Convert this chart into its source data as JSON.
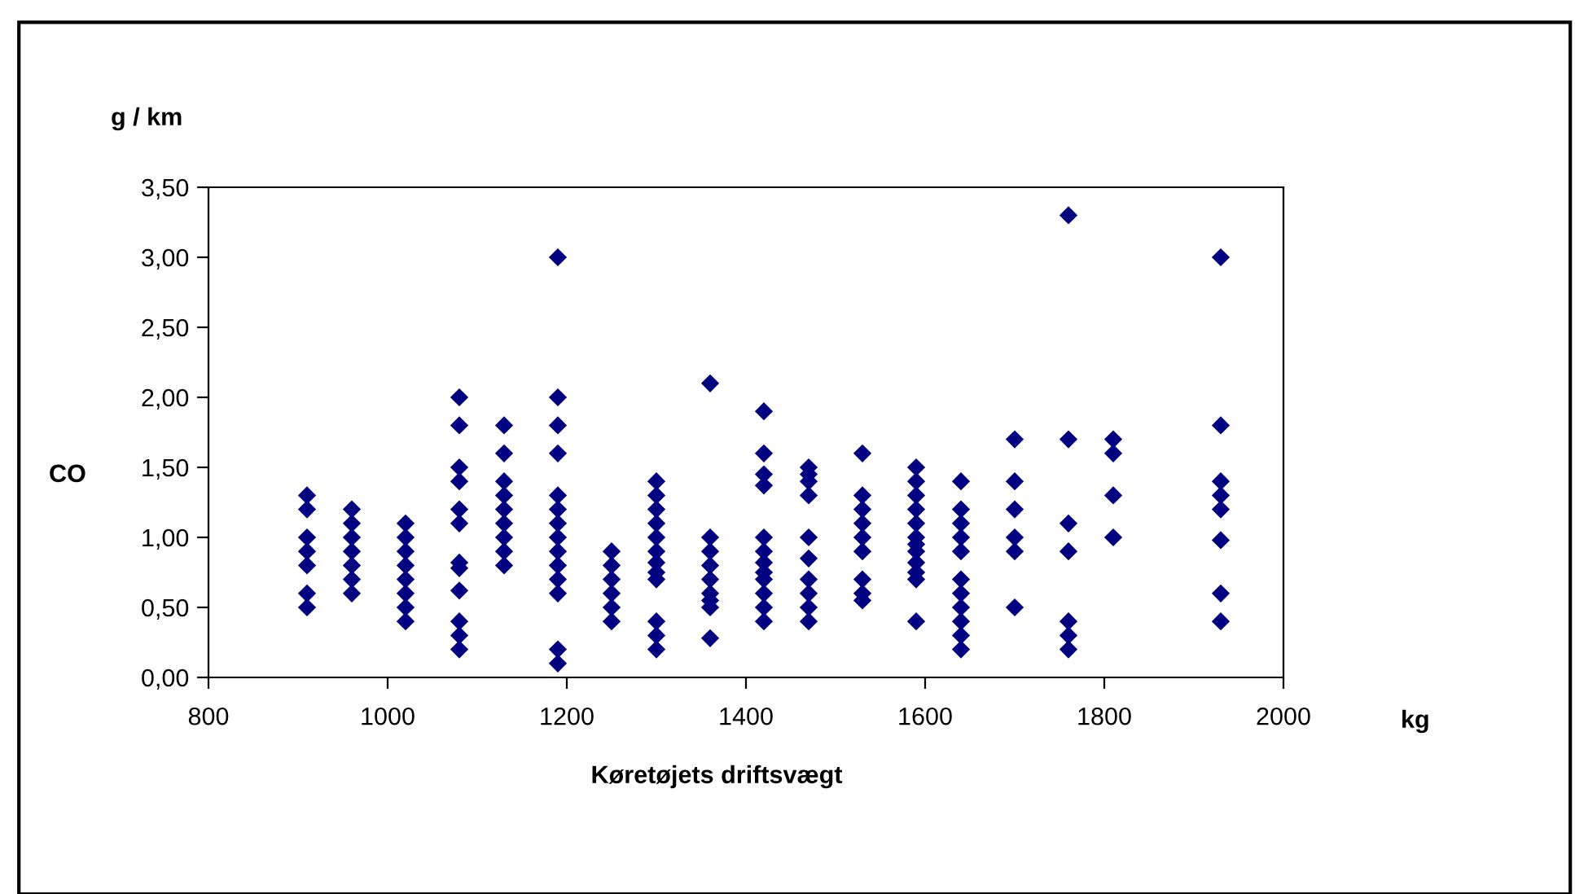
{
  "chart_data": {
    "type": "scatter",
    "xlabel": "Køretøjets driftsvægt",
    "ylabel": "CO",
    "annotations": [
      "g / km",
      "kg"
    ],
    "xlim": [
      800,
      2000
    ],
    "xticks": [
      800,
      1000,
      1200,
      1400,
      1600,
      1800,
      2000
    ],
    "ylim": [
      0,
      3.5
    ],
    "yticks": [
      {
        "value": 0,
        "label": "0,00"
      },
      {
        "value": 0.5,
        "label": "0,50"
      },
      {
        "value": 1,
        "label": "1,00"
      },
      {
        "value": 1.5,
        "label": "1,50"
      },
      {
        "value": 2,
        "label": "2,00"
      },
      {
        "value": 2.5,
        "label": "2,50"
      },
      {
        "value": 3,
        "label": "3,00"
      },
      {
        "value": 3.5,
        "label": "3,50"
      }
    ],
    "grid": false,
    "legend": false,
    "marker": "diamond",
    "series": [
      {
        "color": "#000080",
        "x": [
          910,
          910,
          910,
          910,
          910,
          910,
          910,
          960,
          960,
          960,
          960,
          960,
          960,
          960,
          1020,
          1020,
          1020,
          1020,
          1020,
          1020,
          1020,
          1020,
          1080,
          1080,
          1080,
          1080,
          1080,
          1080,
          1080,
          1080,
          1080,
          1080,
          1080,
          1080,
          1130,
          1130,
          1130,
          1130,
          1130,
          1130,
          1130,
          1130,
          1130,
          1190,
          1190,
          1190,
          1190,
          1190,
          1190,
          1190,
          1190,
          1190,
          1190,
          1190,
          1190,
          1190,
          1190,
          1250,
          1250,
          1250,
          1250,
          1250,
          1250,
          1300,
          1300,
          1300,
          1300,
          1300,
          1300,
          1300,
          1300,
          1300,
          1300,
          1300,
          1300,
          1360,
          1360,
          1360,
          1360,
          1360,
          1360,
          1360,
          1360,
          1360,
          1420,
          1420,
          1420,
          1420,
          1420,
          1420,
          1420,
          1420,
          1420,
          1420,
          1420,
          1420,
          1470,
          1470,
          1470,
          1470,
          1470,
          1470,
          1470,
          1470,
          1470,
          1470,
          1530,
          1530,
          1530,
          1530,
          1530,
          1530,
          1530,
          1530,
          1530,
          1590,
          1590,
          1590,
          1590,
          1590,
          1590,
          1590,
          1590,
          1590,
          1590,
          1590,
          1590,
          1640,
          1640,
          1640,
          1640,
          1640,
          1640,
          1640,
          1640,
          1640,
          1640,
          1640,
          1700,
          1700,
          1700,
          1700,
          1700,
          1700,
          1760,
          1760,
          1760,
          1760,
          1760,
          1760,
          1760,
          1810,
          1810,
          1810,
          1810,
          1930,
          1930,
          1930,
          1930,
          1930,
          1930,
          1930,
          1930
        ],
        "values": [
          1.3,
          1.2,
          1.0,
          0.9,
          0.8,
          0.6,
          0.5,
          1.2,
          1.1,
          1.0,
          0.9,
          0.8,
          0.7,
          0.6,
          1.1,
          1.0,
          0.9,
          0.8,
          0.7,
          0.6,
          0.5,
          0.4,
          2.0,
          1.8,
          1.5,
          1.4,
          1.2,
          1.1,
          0.82,
          0.78,
          0.62,
          0.4,
          0.3,
          0.2,
          1.8,
          1.6,
          1.4,
          1.3,
          1.2,
          1.1,
          1.0,
          0.9,
          0.8,
          3.0,
          2.0,
          1.8,
          1.6,
          1.3,
          1.2,
          1.1,
          1.0,
          0.9,
          0.8,
          0.7,
          0.6,
          0.2,
          0.1,
          0.9,
          0.8,
          0.7,
          0.6,
          0.5,
          0.4,
          1.4,
          1.3,
          1.2,
          1.1,
          1.0,
          0.9,
          0.82,
          0.75,
          0.7,
          0.4,
          0.3,
          0.2,
          2.1,
          1.0,
          0.9,
          0.8,
          0.7,
          0.6,
          0.55,
          0.5,
          0.28,
          1.9,
          1.6,
          1.45,
          1.37,
          1.0,
          0.9,
          0.82,
          0.75,
          0.7,
          0.6,
          0.5,
          0.4,
          1.5,
          1.45,
          1.4,
          1.3,
          1.0,
          0.85,
          0.7,
          0.6,
          0.5,
          0.4,
          1.6,
          1.3,
          1.2,
          1.1,
          1.0,
          0.9,
          0.7,
          0.6,
          0.55,
          1.5,
          1.4,
          1.3,
          1.2,
          1.1,
          1.0,
          0.95,
          0.9,
          0.82,
          0.75,
          0.7,
          0.4,
          1.4,
          1.2,
          1.1,
          1.0,
          0.9,
          0.7,
          0.6,
          0.5,
          0.4,
          0.3,
          0.2,
          1.7,
          1.4,
          1.2,
          1.0,
          0.9,
          0.5,
          3.3,
          1.7,
          1.1,
          0.9,
          0.4,
          0.3,
          0.2,
          1.7,
          1.6,
          1.3,
          1.0,
          3.0,
          1.8,
          1.4,
          1.3,
          1.2,
          0.98,
          0.6,
          0.4
        ]
      }
    ]
  }
}
